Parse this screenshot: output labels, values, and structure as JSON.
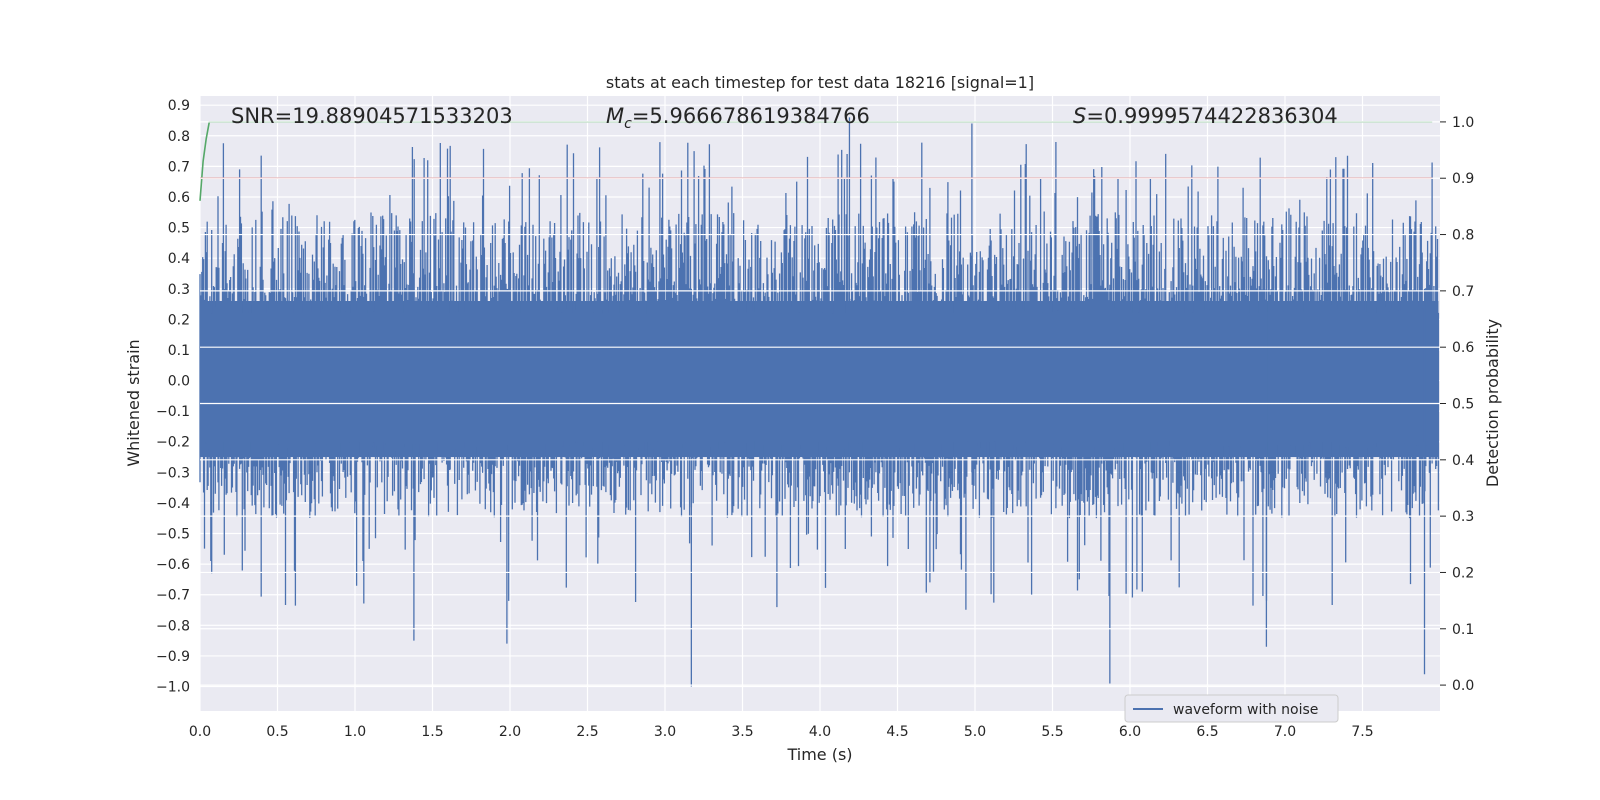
{
  "chart_data": {
    "type": "line",
    "title": "stats at each timestep for test data 18216 [signal=1]",
    "xlabel": "Time (s)",
    "ylabel_left": "Whitened strain",
    "ylabel_right": "Detection probability",
    "xlim": [
      0.0,
      8.0
    ],
    "ylim_left": [
      -1.08,
      0.93
    ],
    "ylim_right": [
      -0.046,
      1.046
    ],
    "x_ticks": [
      "0.0",
      "0.5",
      "1.0",
      "1.5",
      "2.0",
      "2.5",
      "3.0",
      "3.5",
      "4.0",
      "4.5",
      "5.0",
      "5.5",
      "6.0",
      "6.5",
      "7.0",
      "7.5"
    ],
    "y_left_ticks": [
      "0.9",
      "0.8",
      "0.7",
      "0.6",
      "0.5",
      "0.4",
      "0.3",
      "0.2",
      "0.1",
      "0.0",
      "−0.1",
      "−0.2",
      "−0.3",
      "−0.4",
      "−0.5",
      "−0.6",
      "−0.7",
      "−0.8",
      "−0.9",
      "−1.0"
    ],
    "y_right_ticks": [
      "1.0",
      "0.9",
      "0.8",
      "0.7",
      "0.6",
      "0.5",
      "0.4",
      "0.3",
      "0.2",
      "0.1",
      "0.0"
    ],
    "grid": true,
    "legend": {
      "label": "waveform with noise",
      "placement": "lower-right"
    },
    "annotations": {
      "snr": "SNR=19.88904571533203",
      "mc_symbol": "M",
      "mc_subscript": "c",
      "mc_value": "=5.966678619384766",
      "s_symbol": "S",
      "s_value": "=0.9999574422836304"
    },
    "series": [
      {
        "name": "waveform with noise",
        "axis": "left",
        "color": "#4c72b0",
        "kind": "noise",
        "sample_rate_hz": 2048,
        "duration_s": 7.99,
        "envelope": {
          "typical_max": 0.55,
          "typical_min": -0.45,
          "peak_max": 0.86,
          "peak_min": -1.0
        },
        "notable_extremes": [
          {
            "x": 4.19,
            "y": 0.86
          },
          {
            "x": 4.98,
            "y": 0.84
          },
          {
            "x": 3.17,
            "y": -1.0
          },
          {
            "x": 5.87,
            "y": -0.99
          },
          {
            "x": 7.9,
            "y": -0.96
          },
          {
            "x": 6.88,
            "y": -0.87
          },
          {
            "x": 1.98,
            "y": -0.86
          },
          {
            "x": 1.38,
            "y": -0.85
          }
        ]
      },
      {
        "axis": "right",
        "color": "#55a868",
        "x": [
          0.0,
          0.02,
          0.04,
          0.06,
          7.95
        ],
        "y": [
          0.86,
          0.93,
          0.97,
          1.0,
          1.0
        ]
      },
      {
        "axis": "right",
        "color": "#c44e52",
        "x": [
          0.0,
          7.95
        ],
        "y": [
          0.9,
          0.9
        ]
      }
    ]
  }
}
